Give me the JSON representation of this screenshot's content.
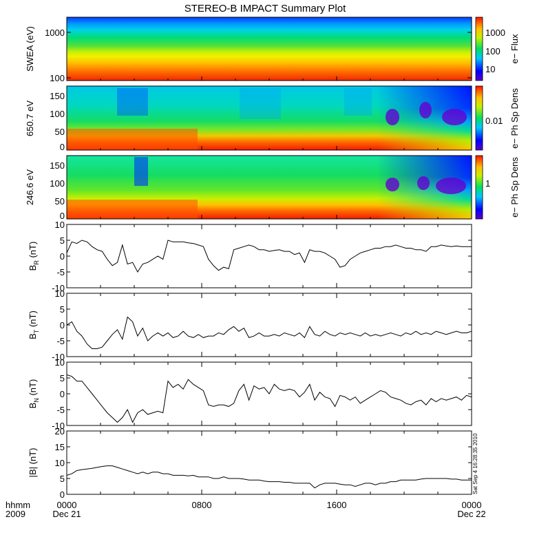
{
  "title": "STEREO-B IMPACT Summary Plot",
  "x_axis": {
    "ticks": [
      "0000",
      "0800",
      "1600",
      "0000"
    ],
    "tick_hours": [
      0,
      8,
      16,
      24
    ],
    "date_labels": [
      "Dec 21",
      "",
      "",
      "Dec 22"
    ],
    "left_labels": [
      "hhmm",
      "2009"
    ]
  },
  "side_stamp": "Sat Sep  4 16:28:35 2010",
  "spectrograms": [
    {
      "ylabel": "SWEA (eV)",
      "yticks": [
        "1000",
        "100"
      ],
      "colorbar_label": "e− Flux",
      "colorbar_ticks": [
        "1000",
        "100",
        "10"
      ]
    },
    {
      "ylabel": "650.7 eV",
      "yticks": [
        "150",
        "100",
        "50",
        "0"
      ],
      "colorbar_label": "e− Ph Sp Dens",
      "colorbar_ticks": [
        "0.01"
      ]
    },
    {
      "ylabel": "246.6 eV",
      "yticks": [
        "150",
        "100",
        "50",
        "0"
      ],
      "colorbar_label": "e− Ph Sp Dens",
      "colorbar_ticks": [
        "1"
      ]
    }
  ],
  "chart_data": [
    {
      "type": "line",
      "panel": "BR",
      "ylabel_main": "B",
      "ylabel_sub": "R",
      "ylabel_unit": " (nT)",
      "ylim": [
        -10,
        10
      ],
      "yticks": [
        "10",
        "5",
        "0",
        "-5",
        "-10"
      ],
      "x": [
        0,
        0.3,
        0.6,
        0.9,
        1.2,
        1.5,
        1.8,
        2.1,
        2.4,
        2.7,
        3.0,
        3.3,
        3.6,
        3.9,
        4.2,
        4.5,
        4.8,
        5.1,
        5.4,
        5.7,
        6.0,
        6.3,
        6.6,
        6.9,
        7.2,
        7.5,
        7.8,
        8.1,
        8.4,
        8.7,
        9.0,
        9.3,
        9.6,
        9.9,
        10.2,
        10.5,
        10.8,
        11.1,
        11.4,
        11.7,
        12.0,
        12.3,
        12.6,
        12.9,
        13.2,
        13.5,
        13.8,
        14.1,
        14.4,
        14.7,
        15.0,
        15.3,
        15.6,
        15.9,
        16.2,
        16.5,
        16.8,
        17.1,
        17.4,
        17.7,
        18.0,
        18.3,
        18.6,
        18.9,
        19.2,
        19.5,
        19.8,
        20.1,
        20.4,
        20.7,
        21.0,
        21.3,
        21.6,
        21.9,
        22.2,
        22.5,
        22.8,
        23.1,
        23.4,
        23.7,
        24.0
      ],
      "values": [
        1.0,
        4.5,
        4.0,
        5.0,
        4.5,
        3.0,
        2.0,
        1.5,
        -1.0,
        -3.0,
        -2.0,
        3.5,
        -2.5,
        -2.0,
        -5.0,
        -2.5,
        -2.0,
        -1.0,
        0.0,
        -1.0,
        5.0,
        4.5,
        4.5,
        4.5,
        4.2,
        4.0,
        3.5,
        3.0,
        -1.0,
        -3.0,
        -4.5,
        -3.5,
        -4.0,
        2.0,
        2.5,
        3.0,
        3.5,
        3.0,
        2.0,
        2.0,
        1.5,
        1.8,
        2.0,
        1.5,
        1.5,
        0.5,
        1.0,
        -2.0,
        2.0,
        1.5,
        1.5,
        1.0,
        0.0,
        -1.0,
        -3.5,
        -3.0,
        -1.0,
        0.0,
        1.0,
        1.5,
        2.0,
        2.5,
        2.5,
        3.0,
        3.0,
        3.5,
        3.0,
        2.5,
        2.5,
        2.0,
        2.0,
        1.5,
        3.0,
        3.0,
        3.5,
        3.2,
        3.0,
        3.2,
        3.0,
        3.0,
        3.0
      ]
    },
    {
      "type": "line",
      "panel": "BT",
      "ylabel_main": "B",
      "ylabel_sub": "T",
      "ylabel_unit": " (nT)",
      "ylim": [
        -10,
        10
      ],
      "yticks": [
        "10",
        "5",
        "0",
        "-5",
        "-10"
      ],
      "x": [
        0,
        0.3,
        0.6,
        0.9,
        1.2,
        1.5,
        1.8,
        2.1,
        2.4,
        2.7,
        3.0,
        3.3,
        3.6,
        3.9,
        4.2,
        4.5,
        4.8,
        5.1,
        5.4,
        5.7,
        6.0,
        6.3,
        6.6,
        6.9,
        7.2,
        7.5,
        7.8,
        8.1,
        8.4,
        8.7,
        9.0,
        9.3,
        9.6,
        9.9,
        10.2,
        10.5,
        10.8,
        11.1,
        11.4,
        11.7,
        12.0,
        12.3,
        12.6,
        12.9,
        13.2,
        13.5,
        13.8,
        14.1,
        14.4,
        14.7,
        15.0,
        15.3,
        15.6,
        15.9,
        16.2,
        16.5,
        16.8,
        17.1,
        17.4,
        17.7,
        18.0,
        18.3,
        18.6,
        18.9,
        19.2,
        19.5,
        19.8,
        20.1,
        20.4,
        20.7,
        21.0,
        21.3,
        21.6,
        21.9,
        22.2,
        22.5,
        22.8,
        23.1,
        23.4,
        23.7,
        24.0
      ],
      "values": [
        0.0,
        1.0,
        -2.0,
        -3.5,
        -6.0,
        -7.5,
        -7.5,
        -7.0,
        -5.0,
        -3.0,
        -1.5,
        -4.5,
        2.5,
        1.0,
        -3.5,
        -1.0,
        -5.0,
        -3.5,
        -2.5,
        -3.5,
        -2.5,
        -4.0,
        -3.5,
        -2.0,
        -3.5,
        -4.0,
        -3.0,
        -4.0,
        -3.5,
        -3.5,
        -2.5,
        -3.0,
        -1.5,
        -0.5,
        -2.0,
        -1.0,
        -4.0,
        -3.5,
        -2.5,
        -3.5,
        -3.5,
        -3.0,
        -3.5,
        -2.5,
        -3.0,
        -3.5,
        -2.5,
        -4.0,
        -0.5,
        -3.0,
        -3.5,
        -2.0,
        -3.0,
        -3.5,
        -2.5,
        -3.0,
        -2.5,
        -3.0,
        -3.5,
        -2.5,
        -3.5,
        -3.0,
        -3.5,
        -3.0,
        -2.5,
        -3.0,
        -3.5,
        -2.5,
        -3.0,
        -2.0,
        -3.0,
        -2.5,
        -3.0,
        -2.0,
        -2.5,
        -3.0,
        -2.5,
        -2.0,
        -2.5,
        -2.5,
        -2.0
      ]
    },
    {
      "type": "line",
      "panel": "BN",
      "ylabel_main": "B",
      "ylabel_sub": "N",
      "ylabel_unit": " (nT)",
      "ylim": [
        -10,
        10
      ],
      "yticks": [
        "10",
        "5",
        "0",
        "-5",
        "-10"
      ],
      "x": [
        0,
        0.3,
        0.6,
        0.9,
        1.2,
        1.5,
        1.8,
        2.1,
        2.4,
        2.7,
        3.0,
        3.3,
        3.6,
        3.9,
        4.2,
        4.5,
        4.8,
        5.1,
        5.4,
        5.7,
        6.0,
        6.3,
        6.6,
        6.9,
        7.2,
        7.5,
        7.8,
        8.1,
        8.4,
        8.7,
        9.0,
        9.3,
        9.6,
        9.9,
        10.2,
        10.5,
        10.8,
        11.1,
        11.4,
        11.7,
        12.0,
        12.3,
        12.6,
        12.9,
        13.2,
        13.5,
        13.8,
        14.1,
        14.4,
        14.7,
        15.0,
        15.3,
        15.6,
        15.9,
        16.2,
        16.5,
        16.8,
        17.1,
        17.4,
        17.7,
        18.0,
        18.3,
        18.6,
        18.9,
        19.2,
        19.5,
        19.8,
        20.1,
        20.4,
        20.7,
        21.0,
        21.3,
        21.6,
        21.9,
        22.2,
        22.5,
        22.8,
        23.1,
        23.4,
        23.7,
        24.0
      ],
      "values": [
        6.0,
        5.5,
        4.0,
        4.0,
        2.0,
        0.0,
        -2.0,
        -4.0,
        -6.0,
        -7.5,
        -9.0,
        -7.5,
        -5.0,
        -9.0,
        -6.0,
        -5.0,
        -6.5,
        -6.0,
        -5.5,
        -6.0,
        4.0,
        2.0,
        3.0,
        1.5,
        4.5,
        3.0,
        2.0,
        1.0,
        -3.5,
        -4.0,
        -3.5,
        -3.5,
        -4.0,
        -3.0,
        1.0,
        3.0,
        -2.0,
        2.5,
        1.5,
        2.0,
        0.0,
        3.0,
        1.5,
        1.0,
        1.5,
        1.0,
        -1.0,
        0.5,
        3.0,
        -2.0,
        0.5,
        -1.0,
        -1.5,
        -4.0,
        -0.5,
        -1.0,
        -2.0,
        -1.0,
        -3.0,
        -2.0,
        -1.0,
        0.0,
        1.0,
        0.5,
        -1.0,
        -1.5,
        -2.0,
        -3.0,
        -3.5,
        -2.5,
        -2.0,
        -3.5,
        -1.5,
        -2.5,
        -1.5,
        -2.0,
        -1.5,
        -1.0,
        -2.0,
        -0.5,
        -1.0
      ]
    },
    {
      "type": "line",
      "panel": "B",
      "ylabel_main": "|B|",
      "ylabel_sub": "",
      "ylabel_unit": " (nT)",
      "ylim": [
        0,
        20
      ],
      "yticks": [
        "20",
        "15",
        "10",
        "5",
        "0"
      ],
      "x": [
        0,
        0.3,
        0.6,
        0.9,
        1.2,
        1.5,
        1.8,
        2.1,
        2.4,
        2.7,
        3.0,
        3.3,
        3.6,
        3.9,
        4.2,
        4.5,
        4.8,
        5.1,
        5.4,
        5.7,
        6.0,
        6.3,
        6.6,
        6.9,
        7.2,
        7.5,
        7.8,
        8.1,
        8.4,
        8.7,
        9.0,
        9.3,
        9.6,
        9.9,
        10.2,
        10.5,
        10.8,
        11.1,
        11.4,
        11.7,
        12.0,
        12.3,
        12.6,
        12.9,
        13.2,
        13.5,
        13.8,
        14.1,
        14.4,
        14.7,
        15.0,
        15.3,
        15.6,
        15.9,
        16.2,
        16.5,
        16.8,
        17.1,
        17.4,
        17.7,
        18.0,
        18.3,
        18.6,
        18.9,
        19.2,
        19.5,
        19.8,
        20.1,
        20.4,
        20.7,
        21.0,
        21.3,
        21.6,
        21.9,
        22.2,
        22.5,
        22.8,
        23.1,
        23.4,
        23.7,
        24.0
      ],
      "values": [
        6.0,
        6.5,
        7.5,
        7.8,
        8.0,
        8.2,
        8.5,
        8.8,
        9.0,
        9.0,
        8.5,
        8.0,
        7.5,
        7.0,
        6.5,
        7.0,
        6.5,
        7.0,
        7.0,
        6.5,
        6.5,
        6.0,
        6.0,
        6.0,
        5.8,
        6.0,
        5.5,
        5.5,
        5.5,
        5.0,
        5.0,
        5.5,
        5.0,
        5.0,
        5.0,
        4.8,
        4.5,
        4.5,
        4.5,
        4.2,
        4.0,
        4.0,
        4.0,
        3.8,
        3.8,
        3.5,
        3.5,
        3.5,
        3.5,
        2.0,
        3.0,
        3.5,
        3.5,
        3.5,
        3.2,
        3.0,
        3.0,
        2.5,
        3.0,
        3.5,
        3.5,
        3.0,
        3.5,
        3.5,
        4.0,
        4.0,
        4.5,
        4.5,
        4.5,
        4.5,
        4.8,
        5.0,
        5.0,
        5.0,
        5.0,
        5.0,
        4.8,
        4.8,
        4.5,
        4.5,
        4.5
      ]
    }
  ]
}
